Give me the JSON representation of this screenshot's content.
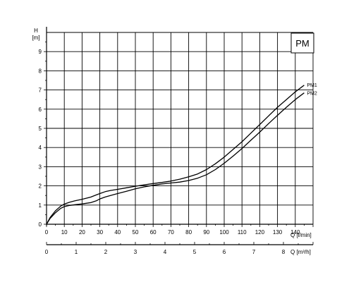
{
  "chart_data": {
    "type": "line",
    "title": "",
    "badge": "PM",
    "ylabel_symbol": "H",
    "ylabel_unit": "[m]",
    "xlabel_primary": "Q [l/min]",
    "xlabel_secondary": "Q [m³/h]",
    "xlim": [
      0,
      150
    ],
    "ylim": [
      0,
      10
    ],
    "xlim_secondary": [
      0,
      9
    ],
    "grid": true,
    "x_ticks": [
      "0",
      "10",
      "20",
      "30",
      "40",
      "50",
      "60",
      "70",
      "80",
      "90",
      "100",
      "110",
      "120",
      "130",
      "140"
    ],
    "y_ticks": [
      "0",
      "1",
      "2",
      "3",
      "4",
      "5",
      "6",
      "7",
      "8",
      "9"
    ],
    "x2_ticks": [
      "0",
      "1",
      "2",
      "3",
      "4",
      "5",
      "6",
      "7",
      "8"
    ],
    "series": [
      {
        "name": "PM1",
        "x": [
          0,
          2,
          5,
          8,
          10,
          13,
          16,
          20,
          25,
          28,
          30,
          33,
          36,
          40,
          45,
          50,
          55,
          60,
          65,
          70,
          75,
          80,
          85,
          90,
          95,
          100,
          105,
          110,
          115,
          120,
          125,
          130,
          135,
          140,
          145
        ],
        "y": [
          0,
          0.35,
          0.7,
          0.95,
          1.05,
          1.15,
          1.22,
          1.3,
          1.42,
          1.53,
          1.6,
          1.7,
          1.76,
          1.82,
          1.9,
          1.98,
          2.05,
          2.12,
          2.18,
          2.25,
          2.35,
          2.47,
          2.62,
          2.85,
          3.15,
          3.5,
          3.9,
          4.3,
          4.75,
          5.2,
          5.65,
          6.1,
          6.5,
          6.9,
          7.25
        ]
      },
      {
        "name": "PM2",
        "x": [
          0,
          2,
          5,
          8,
          10,
          13,
          16,
          20,
          25,
          28,
          30,
          33,
          36,
          40,
          45,
          50,
          55,
          60,
          65,
          70,
          75,
          80,
          85,
          90,
          95,
          100,
          105,
          110,
          115,
          120,
          125,
          130,
          135,
          140,
          145
        ],
        "y": [
          0,
          0.3,
          0.6,
          0.83,
          0.92,
          0.98,
          1.02,
          1.06,
          1.13,
          1.22,
          1.32,
          1.42,
          1.5,
          1.6,
          1.72,
          1.85,
          1.95,
          2.03,
          2.1,
          2.15,
          2.2,
          2.28,
          2.4,
          2.58,
          2.85,
          3.18,
          3.55,
          3.95,
          4.38,
          4.8,
          5.25,
          5.68,
          6.1,
          6.5,
          6.85
        ]
      }
    ]
  }
}
